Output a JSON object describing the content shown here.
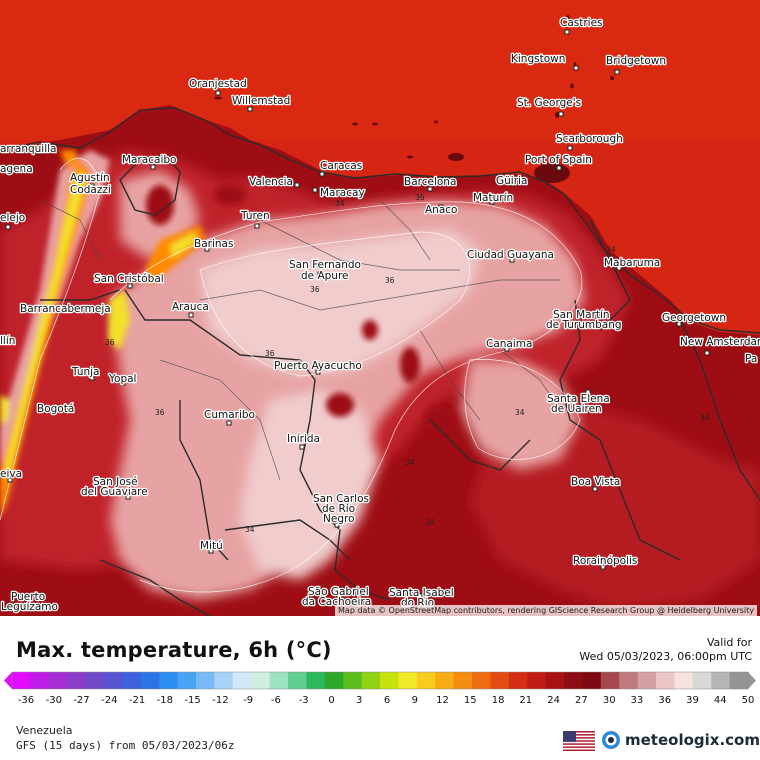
{
  "map": {
    "title": "Max. temperature, 6h (°C)",
    "valid_label": "Valid for",
    "valid_time": "Wed 05/03/2023, 06:00pm UTC",
    "region": "Venezuela",
    "model_info": "GFS (15 days) from 05/03/2023/06z",
    "attribution": "Map data © OpenStreetMap contributors, rendering GIScience Research Group @ Heidelberg University",
    "brand": "meteologix.com",
    "colors": {
      "sea": "#d42612",
      "dark_red": "#9e0d14",
      "mid_red": "#c0242a",
      "light_pink": "#e8a5a4",
      "pale_pink": "#f3d3d0",
      "orange": "#ff8a00",
      "yellow": "#f2e02a",
      "border": "#333333"
    }
  },
  "cities": [
    {
      "name": "Castries"
    },
    {
      "name": "Kingstown"
    },
    {
      "name": "Bridgetown"
    },
    {
      "name": "Oranjestad"
    },
    {
      "name": "Willemstad"
    },
    {
      "name": "St. George's"
    },
    {
      "name": "Scarborough"
    },
    {
      "name": "arranquilla"
    },
    {
      "name": "Maracaibo"
    },
    {
      "name": "Caracas"
    },
    {
      "name": "Port of Spain"
    },
    {
      "name": "agena"
    },
    {
      "name": "Agustín"
    },
    {
      "name": "Codazzi"
    },
    {
      "name": "Valencia"
    },
    {
      "name": "Maracay"
    },
    {
      "name": "Barcelona"
    },
    {
      "name": "Güiria"
    },
    {
      "name": "Anaco"
    },
    {
      "name": "Maturín"
    },
    {
      "name": "elejo"
    },
    {
      "name": "Turen"
    },
    {
      "name": "Barinas"
    },
    {
      "name": "Ciudad Guayana"
    },
    {
      "name": "San Fernando"
    },
    {
      "name": "de Apure"
    },
    {
      "name": "Mabaruma"
    },
    {
      "name": "San Cristóbal"
    },
    {
      "name": "Barrancabermeja"
    },
    {
      "name": "Arauca"
    },
    {
      "name": "San Martín"
    },
    {
      "name": "de Turumbang"
    },
    {
      "name": "Georgetown"
    },
    {
      "name": "llín"
    },
    {
      "name": "New Amsterdam"
    },
    {
      "name": "Pa"
    },
    {
      "name": "Canaima"
    },
    {
      "name": "Puerto Ayacucho"
    },
    {
      "name": "Tunja"
    },
    {
      "name": "Yopal"
    },
    {
      "name": "Bogotá"
    },
    {
      "name": "Santa Elena"
    },
    {
      "name": "de Uairen"
    },
    {
      "name": "Cumaribo"
    },
    {
      "name": "Inírida"
    },
    {
      "name": "eiva"
    },
    {
      "name": "Boa Vista"
    },
    {
      "name": "San José"
    },
    {
      "name": "del Guaviare"
    },
    {
      "name": "San Carlos"
    },
    {
      "name": "de Río"
    },
    {
      "name": "Negro"
    },
    {
      "name": "Mitú"
    },
    {
      "name": "Rorainópolis"
    },
    {
      "name": "Puerto"
    },
    {
      "name": "Leguízamo"
    },
    {
      "name": "São Gabriel"
    },
    {
      "name": "da Cachoeira"
    },
    {
      "name": "Santa Isabel"
    },
    {
      "name": "do Rio"
    }
  ],
  "isotherm_labels": [
    "36",
    "36",
    "36",
    "34",
    "34",
    "36",
    "34",
    "34",
    "34",
    "34",
    "36",
    "36",
    "34"
  ],
  "color_scale": {
    "unit": "°C",
    "ticks": [
      "-36",
      "-30",
      "-27",
      "-24",
      "-21",
      "-18",
      "-15",
      "-12",
      "-9",
      "-6",
      "-3",
      "0",
      "3",
      "6",
      "9",
      "12",
      "15",
      "18",
      "21",
      "24",
      "27",
      "30",
      "33",
      "36",
      "39",
      "44",
      "50"
    ],
    "colors": [
      "#e40cff",
      "#c01ee6",
      "#a62ed6",
      "#8a3ec8",
      "#7048c8",
      "#5654d2",
      "#3e62dc",
      "#2c74e6",
      "#2d8cf0",
      "#4aa2f4",
      "#78baf6",
      "#a8d2f8",
      "#d2e8f8",
      "#cfeee0",
      "#9ee2c4",
      "#62cf92",
      "#2eb85c",
      "#2ea82a",
      "#5cbe1e",
      "#92d214",
      "#c8e20e",
      "#f2e82a",
      "#f8cc1e",
      "#f8ac14",
      "#f48c10",
      "#ee6c10",
      "#e44c12",
      "#d42e14",
      "#c21c16",
      "#a81216",
      "#8e0c14",
      "#7c0a12",
      "#a5484e",
      "#c07a7e",
      "#d6a0a2",
      "#eac6c6",
      "#f6e2e0",
      "#d8d8d8",
      "#b6b6b6",
      "#949494"
    ]
  }
}
